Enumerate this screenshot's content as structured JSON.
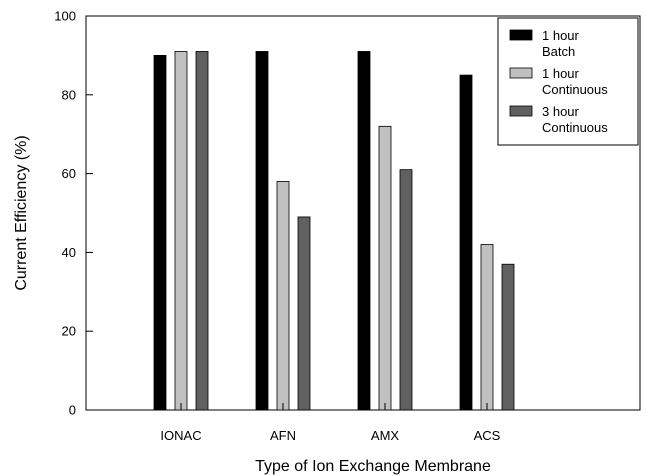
{
  "chart_data": {
    "type": "bar",
    "title": "",
    "xlabel": "Type of Ion Exchange Membrane",
    "ylabel": "Current Efficiency (%)",
    "ylim": [
      0,
      100
    ],
    "yticks": [
      0,
      20,
      40,
      60,
      80,
      100
    ],
    "grid": false,
    "legend_position": "top-right",
    "categories": [
      "IONAC",
      "AFN",
      "AMX",
      "ACS"
    ],
    "series": [
      {
        "name": "1 hour\nBatch",
        "color": "#000000",
        "values": [
          90,
          91,
          91,
          85
        ]
      },
      {
        "name": "1 hour\nContinuous",
        "color": "#c0c0c0",
        "values": [
          91,
          58,
          72,
          42
        ]
      },
      {
        "name": "3 hour\nContinuous",
        "color": "#606060",
        "values": [
          91,
          49,
          61,
          37
        ]
      }
    ]
  }
}
